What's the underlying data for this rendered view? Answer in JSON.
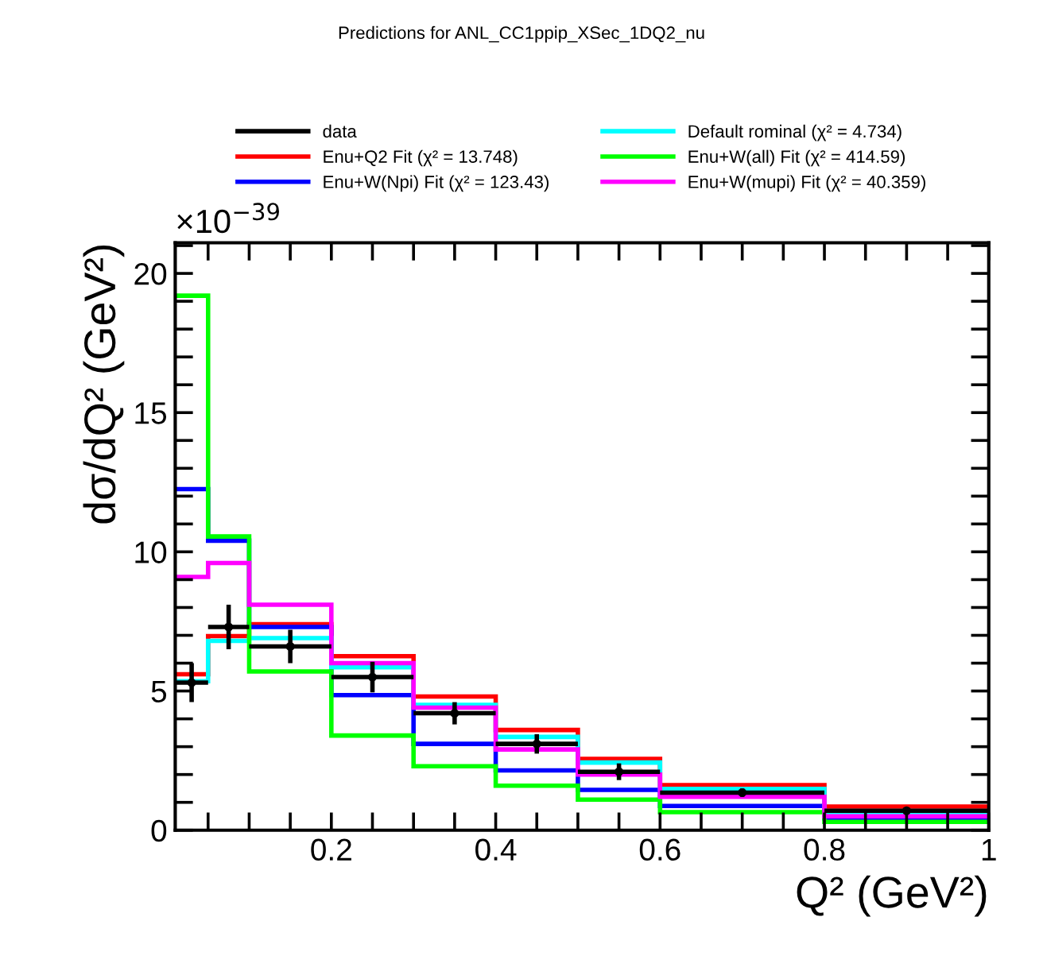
{
  "chart_data": {
    "type": "histogram",
    "title": "Predictions for ANL_CC1ppip_XSec_1DQ2_nu",
    "xlabel": "Q² (GeV²)",
    "ylabel": "dσ/dQ² (GeV²)",
    "annotations": [
      "×10$^{−39}$"
    ],
    "bins": [
      0.01,
      0.05,
      0.1,
      0.2,
      0.3,
      0.4,
      0.5,
      0.6,
      0.8,
      1.0
    ],
    "series": [
      {
        "name": "data",
        "type": "scatter",
        "color": "#000000",
        "x": [
          0.03,
          0.075,
          0.15,
          0.25,
          0.35,
          0.45,
          0.55,
          0.7,
          0.9
        ],
        "values": [
          5.3,
          7.3,
          6.6,
          5.5,
          4.2,
          3.1,
          2.1,
          1.35,
          0.7
        ],
        "errors": [
          0.7,
          0.8,
          0.6,
          0.55,
          0.4,
          0.35,
          0.3,
          0.15,
          0.1
        ],
        "xerrors": [
          0.02,
          0.025,
          0.05,
          0.05,
          0.05,
          0.05,
          0.05,
          0.1,
          0.1
        ]
      },
      {
        "name": "Enu+Q2 Fit (χ² = 13.748)",
        "color": "#ff0000",
        "values": [
          5.6,
          6.97,
          7.4,
          6.25,
          4.8,
          3.6,
          2.56,
          1.62,
          0.85
        ]
      },
      {
        "name": "Enu+W(Npi) Fit (χ² = 123.43)",
        "color": "#0000ff",
        "values": [
          12.25,
          10.4,
          7.3,
          4.85,
          3.1,
          2.15,
          1.45,
          0.87,
          0.43
        ]
      },
      {
        "name": "Default rominal (χ² = 4.734)",
        "color": "#00ffff",
        "values": [
          5.35,
          6.8,
          6.9,
          5.85,
          4.5,
          3.35,
          2.43,
          1.48,
          0.65
        ]
      },
      {
        "name": "Enu+W(all) Fit (χ² = 414.59)",
        "color": "#00ff00",
        "values": [
          19.2,
          10.55,
          5.7,
          3.4,
          2.3,
          1.6,
          1.1,
          0.65,
          0.3
        ]
      },
      {
        "name": "Enu+W(mupi) Fit (χ² = 40.359)",
        "color": "#ff00ff",
        "values": [
          9.1,
          9.6,
          8.1,
          6.0,
          4.4,
          2.9,
          2.0,
          1.2,
          0.5
        ]
      }
    ],
    "xlim": [
      0.01,
      1.0
    ],
    "ylim": [
      0,
      21.1
    ],
    "xticks": [
      {
        "value": 0.05,
        "label": null
      },
      {
        "value": 0.1,
        "label": null
      },
      {
        "value": 0.15,
        "label": null
      },
      {
        "value": 0.2,
        "label": "0.2"
      },
      {
        "value": 0.25,
        "label": null
      },
      {
        "value": 0.3,
        "label": null
      },
      {
        "value": 0.35,
        "label": null
      },
      {
        "value": 0.4,
        "label": "0.4"
      },
      {
        "value": 0.45,
        "label": null
      },
      {
        "value": 0.5,
        "label": null
      },
      {
        "value": 0.55,
        "label": null
      },
      {
        "value": 0.6,
        "label": "0.6"
      },
      {
        "value": 0.65,
        "label": null
      },
      {
        "value": 0.7,
        "label": null
      },
      {
        "value": 0.75,
        "label": null
      },
      {
        "value": 0.8,
        "label": "0.8"
      },
      {
        "value": 0.85,
        "label": null
      },
      {
        "value": 0.9,
        "label": null
      },
      {
        "value": 0.95,
        "label": null
      },
      {
        "value": 1.0,
        "label": "1"
      }
    ],
    "yticks": [
      0,
      {
        "value": 1,
        "label": null
      },
      {
        "value": 2,
        "label": null
      },
      {
        "value": 3,
        "label": null
      },
      {
        "value": 4,
        "label": null
      },
      5,
      {
        "value": 6,
        "label": null
      },
      {
        "value": 7,
        "label": null
      },
      {
        "value": 8,
        "label": null
      },
      {
        "value": 9,
        "label": null
      },
      10,
      {
        "value": 11,
        "label": null
      },
      {
        "value": 12,
        "label": null
      },
      {
        "value": 13,
        "label": null
      },
      {
        "value": 14,
        "label": null
      },
      15,
      {
        "value": 16,
        "label": null
      },
      {
        "value": 17,
        "label": null
      },
      {
        "value": 18,
        "label": null
      },
      {
        "value": 19,
        "label": null
      },
      20,
      {
        "value": 21,
        "label": null
      }
    ],
    "grid": false,
    "legend": "top"
  }
}
